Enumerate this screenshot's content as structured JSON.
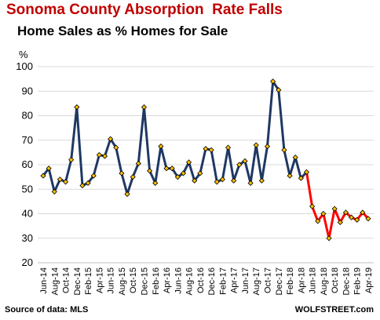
{
  "chart_data": {
    "type": "line",
    "title": "Sonoma County Absorption  Rate Falls",
    "subtitle": "Home Sales as % Homes for Sale",
    "ylabel": "%",
    "ylim": [
      20,
      100
    ],
    "yticks": [
      20,
      30,
      40,
      50,
      60,
      70,
      80,
      90,
      100
    ],
    "grid": true,
    "start_month": "Jun-14",
    "x_tick_labels": [
      "Jun-14",
      "Aug-14",
      "Oct-14",
      "Dec-14",
      "Feb-15",
      "Apr-15",
      "Jun-15",
      "Aug-15",
      "Oct-15",
      "Dec-15",
      "Feb-16",
      "Apr-16",
      "Jun-16",
      "Aug-16",
      "Oct-16",
      "Dec-16",
      "Feb-17",
      "Apr-17",
      "Jun-17",
      "Aug-17",
      "Oct-17",
      "Dec-17",
      "Feb-18",
      "Apr-18",
      "Jun-18",
      "Aug-18",
      "Oct-18",
      "Dec-18",
      "Feb-19",
      "Apr-19"
    ],
    "values": [
      55.5,
      58.5,
      49,
      54,
      53,
      62,
      83.5,
      51.5,
      52.5,
      55.5,
      64,
      63.5,
      70.5,
      67,
      56.5,
      48,
      55,
      60.5,
      83.5,
      57.5,
      52.5,
      67.5,
      58.5,
      58.5,
      55,
      56.5,
      61,
      53.5,
      56.5,
      66.5,
      66,
      53,
      54,
      67,
      53.5,
      60,
      61.5,
      52.5,
      68,
      53.5,
      67.5,
      94,
      90.5,
      66,
      55.5,
      63,
      54.5,
      57,
      43,
      37,
      40,
      30,
      42,
      36.5,
      40.5,
      38.5,
      37.5,
      40.5,
      38
    ],
    "segments": [
      {
        "from_index": 0,
        "to_index": 47,
        "color": "#1f3864"
      },
      {
        "from_index": 47,
        "to_index": 58,
        "color": "#ff0000"
      }
    ],
    "marker_color": "#ffc000"
  },
  "footer": {
    "source": "Source of data: MLS",
    "brand": "WOLFSTREET.com"
  }
}
